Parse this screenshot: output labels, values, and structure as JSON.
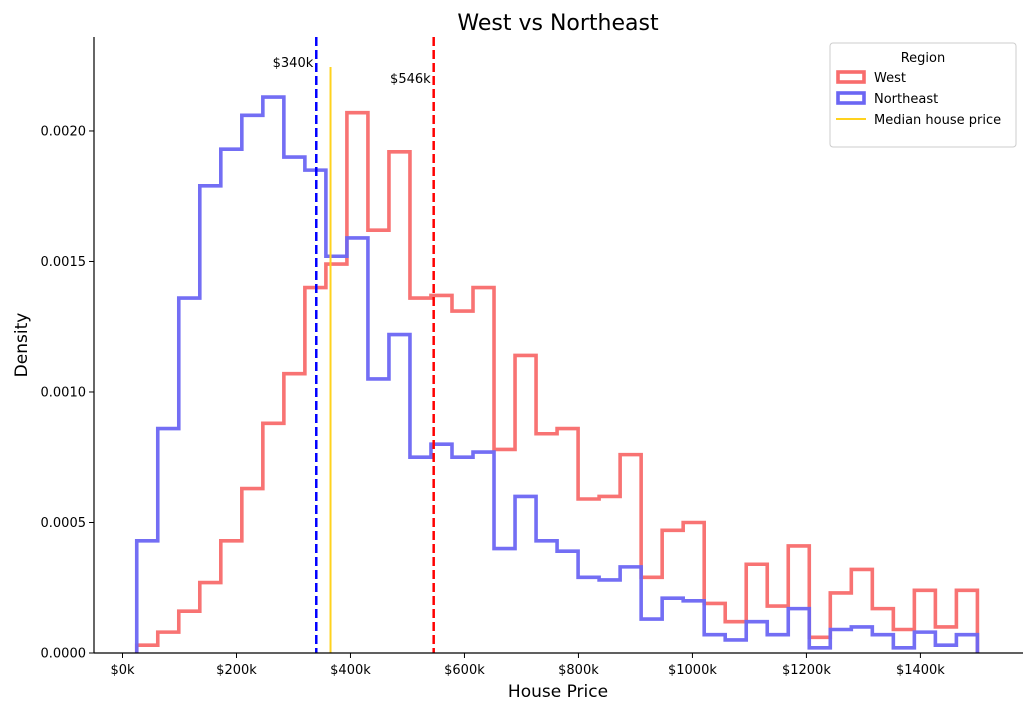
{
  "chart_data": {
    "type": "histogram",
    "title": "West vs Northeast",
    "xlabel": "House Price",
    "ylabel": "Density",
    "xlim": [
      -50000,
      1580000
    ],
    "ylim": [
      0,
      0.00236
    ],
    "x_ticks": [
      0,
      200000,
      400000,
      600000,
      800000,
      1000000,
      1200000,
      1400000
    ],
    "x_tick_labels": [
      "$0k",
      "$200k",
      "$400k",
      "$600k",
      "$800k",
      "$1000k",
      "$1200k",
      "$1400k"
    ],
    "y_ticks": [
      0,
      0.0005,
      0.001,
      0.0015,
      0.002
    ],
    "y_tick_labels": [
      "0.0000",
      "0.0005",
      "0.0010",
      "0.0015",
      "0.0020"
    ],
    "grid": false,
    "legend": {
      "title": "Region",
      "placement": "top-right",
      "entries": [
        "West",
        "Northeast",
        "Median house price"
      ]
    },
    "bin_edges": [
      25000,
      61875,
      98750,
      135625,
      172500,
      209375,
      246250,
      283125,
      320000,
      356875,
      393750,
      430625,
      467500,
      504375,
      541250,
      578125,
      615000,
      651875,
      688750,
      725625,
      762500,
      799375,
      836250,
      873125,
      910000,
      946875,
      983750,
      1020625,
      1057500,
      1094375,
      1131250,
      1168125,
      1205000,
      1241875,
      1278750,
      1315625,
      1352500,
      1389375,
      1426250,
      1463125,
      1500000
    ],
    "series": [
      {
        "name": "West",
        "color": "#f86c6c",
        "values": [
          3e-05,
          8e-05,
          0.00016,
          0.00027,
          0.00043,
          0.00063,
          0.00088,
          0.00107,
          0.0014,
          0.00149,
          0.00207,
          0.00162,
          0.00192,
          0.00136,
          0.00137,
          0.00131,
          0.0014,
          0.00078,
          0.00114,
          0.00084,
          0.00086,
          0.00059,
          0.0006,
          0.00076,
          0.00029,
          0.00047,
          0.0005,
          0.00019,
          0.00012,
          0.00034,
          0.00018,
          0.00041,
          6e-05,
          0.00023,
          0.00032,
          0.00017,
          9e-05,
          0.00024,
          0.0001,
          0.00024
        ]
      },
      {
        "name": "Northeast",
        "color": "#6b66f3",
        "values": [
          0.00043,
          0.00086,
          0.00136,
          0.00179,
          0.00193,
          0.00206,
          0.00213,
          0.0019,
          0.00185,
          0.00152,
          0.00159,
          0.00105,
          0.00122,
          0.00075,
          0.0008,
          0.00075,
          0.00077,
          0.0004,
          0.0006,
          0.00043,
          0.00039,
          0.00029,
          0.00028,
          0.00033,
          0.00013,
          0.00021,
          0.0002,
          7e-05,
          5e-05,
          0.00012,
          7e-05,
          0.00017,
          2e-05,
          9e-05,
          0.0001,
          7e-05,
          2e-05,
          8e-05,
          3e-05,
          7e-05
        ]
      }
    ],
    "reference_lines": [
      {
        "region": "Northeast",
        "value": 340000,
        "label": "$340k",
        "color": "#0000ff",
        "style": "dashed"
      },
      {
        "region": "West",
        "value": 546000,
        "label": "$546k",
        "color": "#ff0000",
        "style": "dashed"
      },
      {
        "region": "overall",
        "name": "Median house price",
        "value": 365000,
        "color": "#ffd21e",
        "style": "solid"
      }
    ]
  }
}
